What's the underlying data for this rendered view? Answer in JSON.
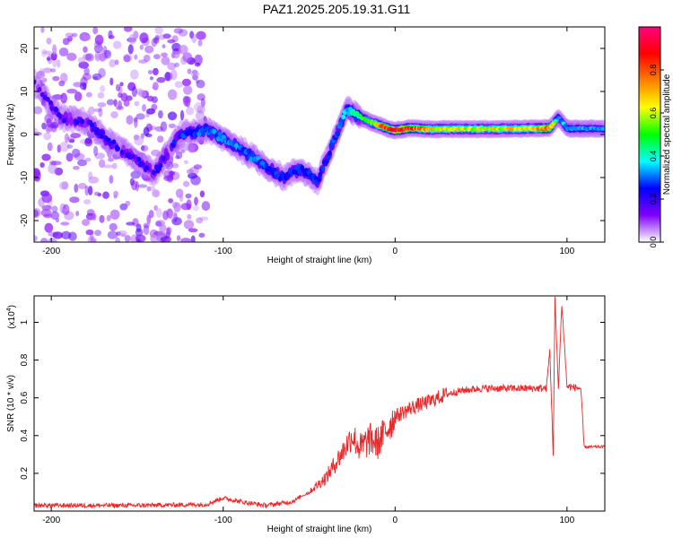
{
  "figure": {
    "title": "PAZ1.2025.205.19.31.G11"
  },
  "chart_data": [
    {
      "type": "heatmap",
      "xlabel": "Height of straight line (km)",
      "ylabel": "Frequency (Hz)",
      "xlim": [
        -210,
        122
      ],
      "ylim": [
        -25,
        25
      ],
      "xticks": [
        -200,
        -100,
        0,
        100
      ],
      "yticks": [
        -20,
        -10,
        0,
        10,
        20
      ],
      "colorbar": {
        "label": "Normalized spectral amplitude",
        "range": [
          0.0,
          1.0
        ],
        "ticks": [
          0.0,
          0.2,
          0.4,
          0.6,
          0.8
        ],
        "colormap": [
          "#ffffff",
          "#8000ff",
          "#0000ff",
          "#00ffff",
          "#00ff00",
          "#ffff00",
          "#ff8000",
          "#ff0000",
          "#ff0080"
        ]
      },
      "ridge": {
        "x": [
          -210,
          -195,
          -180,
          -165,
          -150,
          -140,
          -125,
          -110,
          -95,
          -80,
          -65,
          -55,
          -45,
          -38,
          -32,
          -28,
          -25,
          -15,
          -5,
          0,
          10,
          20,
          40,
          60,
          80,
          90,
          95,
          100,
          122
        ],
        "y": [
          12,
          4,
          3,
          -2,
          -6,
          -9,
          0,
          1,
          -2,
          -6,
          -10,
          -8,
          -11,
          -4,
          2,
          6,
          5,
          3,
          1.5,
          1,
          1.5,
          1.2,
          1.3,
          1.3,
          1.4,
          1.5,
          4,
          1.4,
          1.3
        ],
        "amplitude": [
          0.15,
          0.2,
          0.2,
          0.22,
          0.2,
          0.2,
          0.25,
          0.3,
          0.3,
          0.3,
          0.25,
          0.25,
          0.25,
          0.25,
          0.3,
          0.35,
          0.4,
          0.5,
          0.8,
          0.95,
          0.8,
          0.65,
          0.6,
          0.62,
          0.65,
          0.8,
          0.3,
          0.35,
          0.3
        ]
      },
      "background_noise": {
        "x_range": [
          -210,
          -110
        ],
        "y_range": [
          -25,
          25
        ],
        "level": 0.05
      }
    },
    {
      "type": "line",
      "xlabel": "Height of straight line (km)",
      "ylabel": "SNR (10 * v/v)",
      "scale_label": "(x10",
      "scale_exponent": "4",
      "xlim": [
        -210,
        122
      ],
      "ylim": [
        0,
        1.14
      ],
      "xticks": [
        -200,
        -100,
        0,
        100
      ],
      "yticks": [
        0.2,
        0.4,
        0.6,
        0.8,
        1.0
      ],
      "color": "#e8282a",
      "series": [
        {
          "x": [
            -210,
            -150,
            -110,
            -100,
            -90,
            -75,
            -60,
            -50,
            -40,
            -30,
            -25,
            -20,
            -15,
            -10,
            0,
            10,
            20,
            30,
            40,
            50,
            60,
            70,
            80,
            88,
            90,
            92,
            93,
            95,
            97,
            100,
            108,
            110,
            122
          ],
          "y": [
            0.03,
            0.03,
            0.035,
            0.07,
            0.05,
            0.03,
            0.05,
            0.1,
            0.18,
            0.32,
            0.4,
            0.33,
            0.38,
            0.36,
            0.5,
            0.55,
            0.58,
            0.62,
            0.64,
            0.65,
            0.65,
            0.65,
            0.65,
            0.65,
            0.85,
            0.3,
            1.12,
            0.65,
            1.1,
            0.66,
            0.65,
            0.34,
            0.34
          ]
        }
      ]
    }
  ]
}
